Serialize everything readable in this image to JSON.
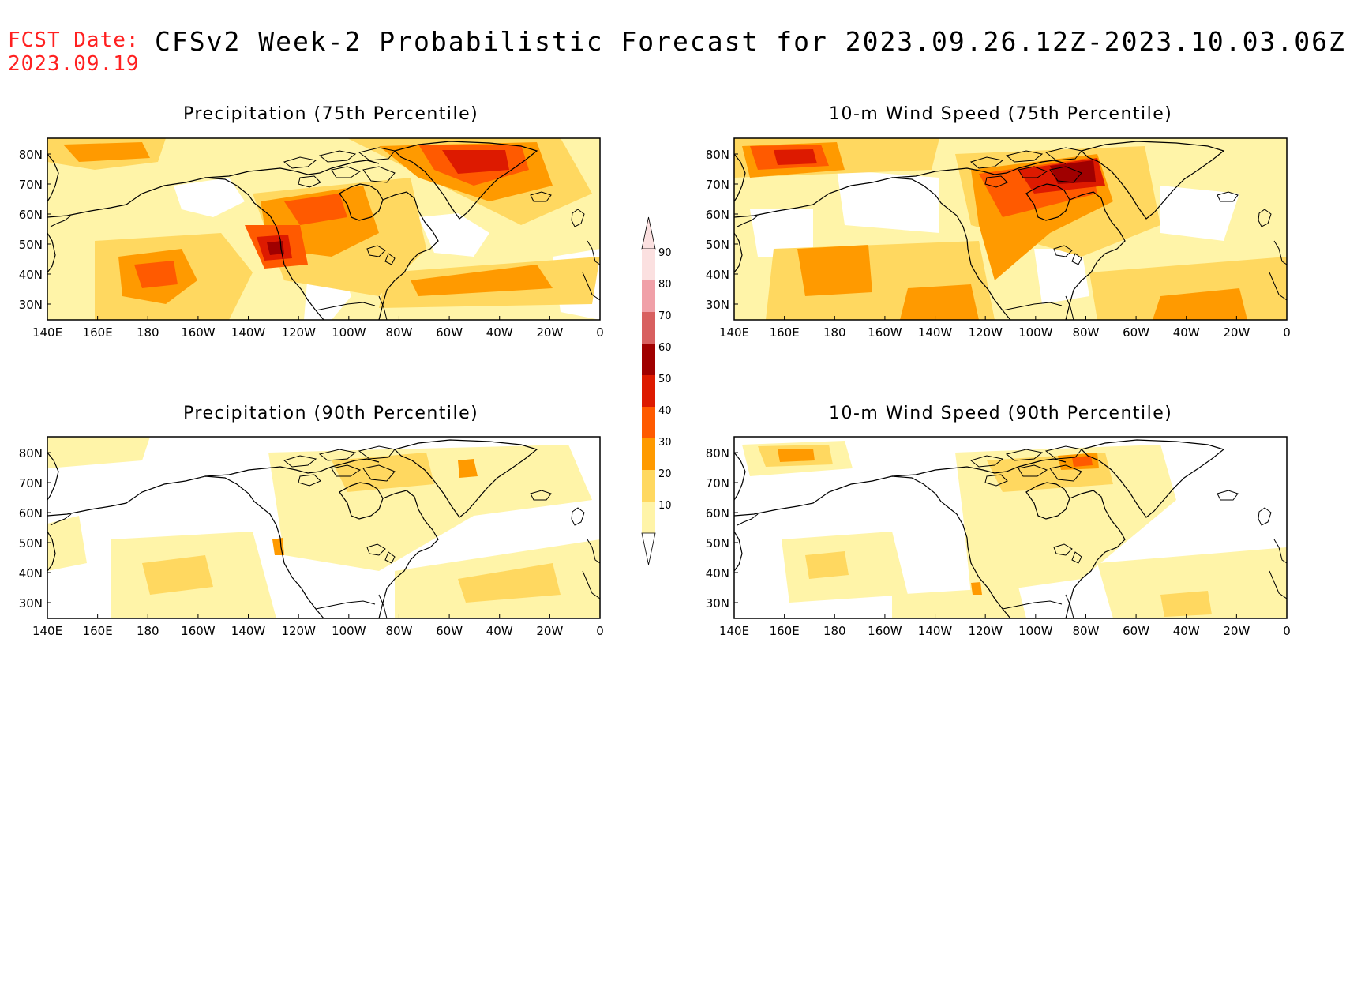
{
  "header": {
    "fcst_label": "FCST Date:",
    "fcst_date": "2023.09.19",
    "title": "CFSv2 Week-2 Probabilistic Forecast for 2023.09.26.12Z-2023.10.03.06Z"
  },
  "lon_ticks": [
    "140E",
    "160E",
    "180",
    "160W",
    "140W",
    "120W",
    "100W",
    "80W",
    "60W",
    "40W",
    "20W",
    "0"
  ],
  "lat_ticks": [
    "80N",
    "70N",
    "60N",
    "50N",
    "40N",
    "30N"
  ],
  "colorbar": {
    "levels": [
      "90",
      "80",
      "70",
      "60",
      "50",
      "40",
      "30",
      "20",
      "10"
    ],
    "colors": [
      "#fbe0e0",
      "#f0a0a8",
      "#d86060",
      "#a00000",
      "#dd1a00",
      "#ff5a00",
      "#ff9a00",
      "#ffd860",
      "#fff4a8"
    ]
  },
  "panels": [
    {
      "id": "precip75",
      "title": "Precipitation (75th Percentile)",
      "intensity": "high-precip"
    },
    {
      "id": "wind75",
      "title": "10-m Wind Speed (75th Percentile)",
      "intensity": "high-wind"
    },
    {
      "id": "precip90",
      "title": "Precipitation (90th Percentile)",
      "intensity": "low-precip"
    },
    {
      "id": "wind90",
      "title": "10-m Wind Speed (90th Percentile)",
      "intensity": "low-wind"
    }
  ]
}
